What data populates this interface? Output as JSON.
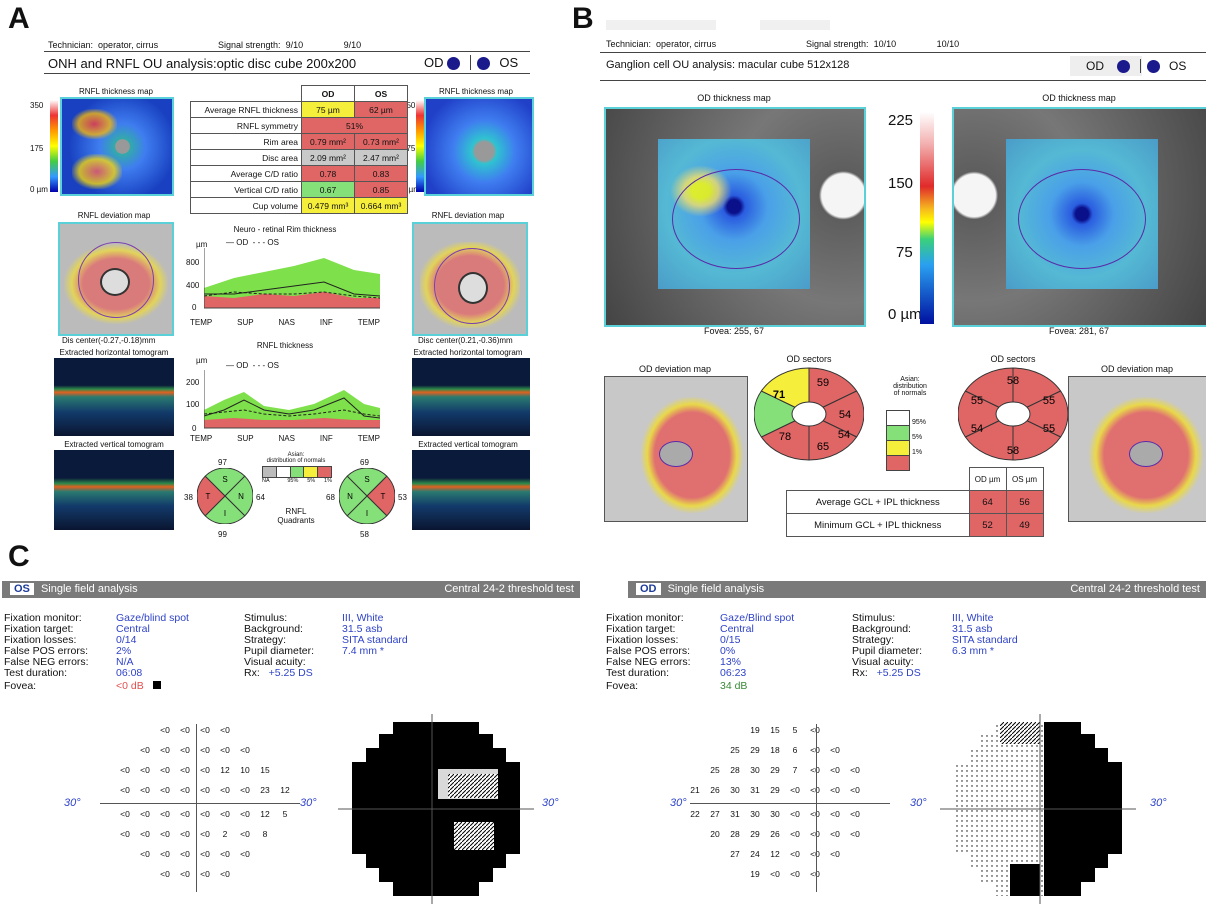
{
  "panels": {
    "a": "A",
    "b": "B",
    "c": "C"
  },
  "a": {
    "technician_label": "Technician:",
    "technician_value": "operator, cirrus",
    "signal_label": "Signal strength:",
    "signal_od": "9/10",
    "signal_os": "9/10",
    "title": "ONH and RNFL OU analysis:optic disc cube 200x200",
    "od": "OD",
    "os": "OS",
    "rnfl_map_title": "RNFL thickness map",
    "scale_top": "350",
    "scale_mid": "175",
    "scale_bot": "0 µm",
    "deviation_title": "RNFL deviation map",
    "table": {
      "head_od": "OD",
      "head_os": "OS",
      "rows": [
        {
          "label": "Average RNFL thickness",
          "od": "75 µm",
          "os": "62 µm",
          "od_c": "yel",
          "os_c": "red"
        },
        {
          "label": "RNFL symmetry",
          "span": "51%",
          "c": "red"
        },
        {
          "label": "Rim area",
          "od": "0.79 mm²",
          "os": "0.73 mm²",
          "od_c": "red",
          "os_c": "red"
        },
        {
          "label": "Disc area",
          "od": "2.09 mm²",
          "os": "2.47 mm²",
          "od_c": "gry",
          "os_c": "gry"
        },
        {
          "label": "Average C/D ratio",
          "od": "0.78",
          "os": "0.83",
          "od_c": "red",
          "os_c": "red"
        },
        {
          "label": "Vertical C/D ratio",
          "od": "0.67",
          "os": "0.85",
          "od_c": "grn",
          "os_c": "red"
        },
        {
          "label": "Cup volume",
          "od": "0.479 mm³",
          "os": "0.664 mm³",
          "od_c": "yel",
          "os_c": "yel"
        }
      ]
    },
    "rim_chart_title": "Neuro - retinal Rim thickness",
    "rnfl_chart_title": "RNFL thickness",
    "legend_od": "OD",
    "legend_os": "OS",
    "unit": "µm",
    "rim_ticks": [
      "800",
      "400",
      "0"
    ],
    "rnfl_ticks": [
      "200",
      "100",
      "0"
    ],
    "x_ticks": [
      "TEMP",
      "SUP",
      "NAS",
      "INF",
      "TEMP"
    ],
    "disc_center_od": "Dis   center(-0.27,-0.18)mm",
    "disc_center_os": "Disc center(0.21,-0.36)mm",
    "horiz_tomo": "Extracted horizontal tomogram",
    "vert_tomo": "Extracted vertical tomogram",
    "quadrants": {
      "od": {
        "S": "S",
        "N": "N",
        "I": "I",
        "T": "T",
        "top": "97",
        "right": "64",
        "bottom": "99",
        "left": "38"
      },
      "os": {
        "S": "S",
        "N": "N",
        "I": "I",
        "T": "T",
        "top": "69",
        "right": "53",
        "bottom": "58",
        "left": "68"
      },
      "label": "RNFL\nQuadrants",
      "legend_title": "Asian:\ndistribution of normals",
      "legend_na": "NA",
      "legend_95": "95%",
      "legend_5": "5%",
      "legend_1": "1%"
    }
  },
  "b": {
    "technician_label": "Technician:",
    "technician_value": "operator, cirrus",
    "signal_label": "Signal strength:",
    "signal_od": "10/10",
    "signal_os": "10/10",
    "title": "Ganglion cell OU analysis: macular cube 512x128",
    "od": "OD",
    "os": "OS",
    "thickness_map": "OD  thickness map",
    "fovea_od": "Fovea: 255, 67",
    "fovea_os": "Fovea: 281, 67",
    "scale": [
      "225",
      "150",
      "75",
      "0 µm"
    ],
    "deviation": "OD deviation map",
    "sectors": "OD sectors",
    "od_sectors": [
      "59",
      "54",
      "54",
      "65",
      "78",
      "71"
    ],
    "os_sectors": [
      "58",
      "55",
      "55",
      "58",
      "54",
      "55"
    ],
    "legend_title": "Asian:\ndistribution\nof normals",
    "legend_95": "95%",
    "legend_5": "5%",
    "legend_1": "1%",
    "gcl": {
      "head_od": "OD µm",
      "head_os": "OS µm",
      "avg_label": "Average GCL + IPL thickness",
      "avg_od": "64",
      "avg_os": "56",
      "min_label": "Minimum GCL + IPL thickness",
      "min_od": "52",
      "min_os": "49"
    }
  },
  "c": {
    "left": {
      "eye": "OS",
      "title": "Single field analysis",
      "test": "Central 24-2 threshold test",
      "info_left": [
        [
          "Fixation monitor:",
          "Gaze/blind spot"
        ],
        [
          "Fixation target:",
          "Central"
        ],
        [
          "Fixation losses:",
          "0/14"
        ],
        [
          "False POS errors:",
          "2%"
        ],
        [
          "False NEG errors:",
          "N/A"
        ],
        [
          "Test duration:",
          "06:08"
        ]
      ],
      "fovea_label": "Fovea:",
      "fovea_value": "<0 dB",
      "info_right": [
        [
          "Stimulus:",
          "III, White"
        ],
        [
          "Background:",
          "31.5 asb"
        ],
        [
          "Strategy:",
          "SITA standard"
        ],
        [
          "Pupil diameter:",
          "7.4 mm *"
        ],
        [
          "Visual acuity:",
          ""
        ],
        [
          "Rx:",
          "+5.25 DS"
        ]
      ],
      "deg": "30°"
    },
    "right": {
      "eye": "OD",
      "title": "Single field analysis",
      "test": "Central 24-2 threshold test",
      "info_left": [
        [
          "Fixation monitor:",
          "Gaze/Blind spot"
        ],
        [
          "Fixation target:",
          "Central"
        ],
        [
          "Fixation losses:",
          "0/15"
        ],
        [
          "False POS errors:",
          "0%"
        ],
        [
          "False NEG errors:",
          "13%"
        ],
        [
          "Test duration:",
          "06:23"
        ]
      ],
      "fovea_label": "Fovea:",
      "fovea_value": "34 dB",
      "info_right": [
        [
          "Stimulus:",
          "III, White"
        ],
        [
          "Background:",
          "31.5 asb"
        ],
        [
          "Strategy:",
          "SITA standard"
        ],
        [
          "Pupil diameter:",
          "6.3 mm *"
        ],
        [
          "Visual acuity:",
          ""
        ],
        [
          "Rx:",
          "+5.25 DS"
        ]
      ],
      "deg": "30°"
    },
    "os_grid": [
      [
        "",
        "",
        "",
        "<0",
        "<0",
        "<0",
        "<0",
        "",
        "",
        ""
      ],
      [
        "",
        "",
        "<0",
        "<0",
        "<0",
        "<0",
        "<0",
        "<0",
        "",
        ""
      ],
      [
        "",
        "<0",
        "<0",
        "<0",
        "<0",
        "<0",
        "12",
        "10",
        "15",
        ""
      ],
      [
        "",
        "<0",
        "<0",
        "<0",
        "<0",
        "<0",
        "<0",
        "<0",
        "23",
        "12"
      ],
      [
        "",
        "<0",
        "<0",
        "<0",
        "<0",
        "<0",
        "<0",
        "<0",
        "12",
        "5"
      ],
      [
        "",
        "<0",
        "<0",
        "<0",
        "<0",
        "<0",
        "2",
        "<0",
        "8",
        ""
      ],
      [
        "",
        "",
        "<0",
        "<0",
        "<0",
        "<0",
        "<0",
        "<0",
        "",
        ""
      ],
      [
        "",
        "",
        "",
        "<0",
        "<0",
        "<0",
        "<0",
        "",
        "",
        ""
      ]
    ],
    "od_grid": [
      [
        "",
        "",
        "",
        "19",
        "15",
        "5",
        "<0",
        "",
        "",
        ""
      ],
      [
        "",
        "",
        "25",
        "29",
        "18",
        "6",
        "<0",
        "<0",
        "",
        ""
      ],
      [
        "",
        "25",
        "28",
        "30",
        "29",
        "7",
        "<0",
        "<0",
        "<0",
        ""
      ],
      [
        "21",
        "26",
        "30",
        "31",
        "29",
        "<0",
        "<0",
        "<0",
        "<0",
        ""
      ],
      [
        "22",
        "27",
        "31",
        "30",
        "30",
        "<0",
        "<0",
        "<0",
        "<0",
        ""
      ],
      [
        "",
        "20",
        "28",
        "29",
        "26",
        "<0",
        "<0",
        "<0",
        "<0",
        ""
      ],
      [
        "",
        "",
        "27",
        "24",
        "12",
        "<0",
        "<0",
        "<0",
        "",
        ""
      ],
      [
        "",
        "",
        "",
        "19",
        "<0",
        "<0",
        "<0",
        "",
        "",
        ""
      ]
    ]
  }
}
